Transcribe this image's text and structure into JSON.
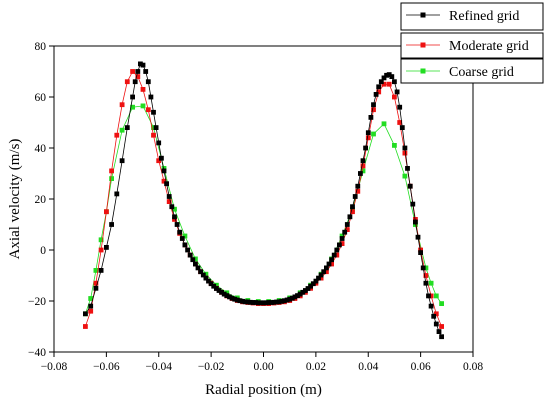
{
  "chart_data": {
    "type": "line",
    "title": "",
    "xlabel": "Radial position (m)",
    "ylabel": "Axial velocity (m/s)",
    "xlim": [
      -0.08,
      0.08
    ],
    "ylim": [
      -40,
      80
    ],
    "xticks": [
      -0.08,
      -0.06,
      -0.04,
      -0.02,
      0.0,
      0.02,
      0.04,
      0.06,
      0.08
    ],
    "xtick_labels": [
      "−0.08",
      "−0.06",
      "−0.04",
      "−0.02",
      "0.00",
      "0.02",
      "0.04",
      "0.06",
      "0.08"
    ],
    "yticks": [
      -40,
      -20,
      0,
      20,
      40,
      60,
      80
    ],
    "ytick_labels": [
      "−40",
      "−20",
      "0",
      "20",
      "40",
      "60",
      "80"
    ],
    "grid": false,
    "legend_position": "top-right",
    "series": [
      {
        "name": "Refined grid",
        "color": "#000000",
        "marker": "square",
        "points": [
          [
            -0.068,
            -25
          ],
          [
            -0.066,
            -22
          ],
          [
            -0.064,
            -15
          ],
          [
            -0.062,
            -8
          ],
          [
            -0.06,
            1
          ],
          [
            -0.058,
            10
          ],
          [
            -0.056,
            22
          ],
          [
            -0.054,
            35
          ],
          [
            -0.052,
            48
          ],
          [
            -0.05,
            60
          ],
          [
            -0.049,
            66
          ],
          [
            -0.048,
            70
          ],
          [
            -0.047,
            73
          ],
          [
            -0.046,
            72.5
          ],
          [
            -0.045,
            70
          ],
          [
            -0.044,
            66
          ],
          [
            -0.043,
            60
          ],
          [
            -0.042,
            54
          ],
          [
            -0.041,
            48
          ],
          [
            -0.04,
            42
          ],
          [
            -0.039,
            36
          ],
          [
            -0.038,
            31
          ],
          [
            -0.037,
            26
          ],
          [
            -0.036,
            21
          ],
          [
            -0.035,
            17
          ],
          [
            -0.034,
            13
          ],
          [
            -0.033,
            10
          ],
          [
            -0.032,
            7
          ],
          [
            -0.031,
            4.5
          ],
          [
            -0.03,
            2
          ],
          [
            -0.029,
            0
          ],
          [
            -0.028,
            -2
          ],
          [
            -0.027,
            -3.8
          ],
          [
            -0.026,
            -5.5
          ],
          [
            -0.025,
            -7
          ],
          [
            -0.024,
            -8.5
          ],
          [
            -0.023,
            -9.8
          ],
          [
            -0.022,
            -11
          ],
          [
            -0.021,
            -12.2
          ],
          [
            -0.02,
            -13.2
          ],
          [
            -0.019,
            -14.2
          ],
          [
            -0.018,
            -15.1
          ],
          [
            -0.017,
            -15.9
          ],
          [
            -0.016,
            -16.6
          ],
          [
            -0.015,
            -17.3
          ],
          [
            -0.014,
            -17.9
          ],
          [
            -0.013,
            -18.4
          ],
          [
            -0.012,
            -18.9
          ],
          [
            -0.011,
            -19.3
          ],
          [
            -0.01,
            -19.6
          ],
          [
            -0.009,
            -19.9
          ],
          [
            -0.008,
            -20.1
          ],
          [
            -0.007,
            -20.3
          ],
          [
            -0.006,
            -20.4
          ],
          [
            -0.005,
            -20.5
          ],
          [
            -0.004,
            -20.6
          ],
          [
            -0.003,
            -20.6
          ],
          [
            -0.002,
            -20.7
          ],
          [
            -0.001,
            -20.7
          ],
          [
            0.0,
            -20.7
          ],
          [
            0.001,
            -20.7
          ],
          [
            0.002,
            -20.6
          ],
          [
            0.003,
            -20.6
          ],
          [
            0.004,
            -20.5
          ],
          [
            0.005,
            -20.4
          ],
          [
            0.006,
            -20.3
          ],
          [
            0.007,
            -20.1
          ],
          [
            0.008,
            -19.9
          ],
          [
            0.009,
            -19.6
          ],
          [
            0.01,
            -19.3
          ],
          [
            0.011,
            -18.9
          ],
          [
            0.012,
            -18.4
          ],
          [
            0.013,
            -17.9
          ],
          [
            0.014,
            -17.3
          ],
          [
            0.015,
            -16.6
          ],
          [
            0.016,
            -15.9
          ],
          [
            0.017,
            -15.1
          ],
          [
            0.018,
            -14.2
          ],
          [
            0.019,
            -13.2
          ],
          [
            0.02,
            -12.2
          ],
          [
            0.021,
            -11
          ],
          [
            0.022,
            -9.8
          ],
          [
            0.023,
            -8.5
          ],
          [
            0.024,
            -7
          ],
          [
            0.025,
            -5.5
          ],
          [
            0.026,
            -3.8
          ],
          [
            0.027,
            -2
          ],
          [
            0.028,
            0
          ],
          [
            0.029,
            2
          ],
          [
            0.03,
            4.5
          ],
          [
            0.031,
            7
          ],
          [
            0.032,
            10
          ],
          [
            0.033,
            13
          ],
          [
            0.034,
            17
          ],
          [
            0.035,
            21
          ],
          [
            0.036,
            25
          ],
          [
            0.037,
            30
          ],
          [
            0.038,
            35
          ],
          [
            0.039,
            40
          ],
          [
            0.04,
            46
          ],
          [
            0.041,
            52
          ],
          [
            0.042,
            57
          ],
          [
            0.043,
            61
          ],
          [
            0.044,
            64
          ],
          [
            0.045,
            66
          ],
          [
            0.046,
            67.5
          ],
          [
            0.047,
            68.5
          ],
          [
            0.048,
            68.8
          ],
          [
            0.049,
            68
          ],
          [
            0.05,
            66
          ],
          [
            0.051,
            62
          ],
          [
            0.052,
            56
          ],
          [
            0.053,
            48
          ],
          [
            0.054,
            40
          ],
          [
            0.055,
            32
          ],
          [
            0.056,
            25
          ],
          [
            0.057,
            18
          ],
          [
            0.058,
            11
          ],
          [
            0.059,
            5
          ],
          [
            0.06,
            -1
          ],
          [
            0.061,
            -7
          ],
          [
            0.062,
            -13
          ],
          [
            0.063,
            -18
          ],
          [
            0.064,
            -22
          ],
          [
            0.065,
            -26
          ],
          [
            0.066,
            -29
          ],
          [
            0.067,
            -32
          ],
          [
            0.068,
            -34
          ]
        ]
      },
      {
        "name": "Moderate grid",
        "color": "#ee1111",
        "marker": "square",
        "points": [
          [
            -0.068,
            -30
          ],
          [
            -0.066,
            -24
          ],
          [
            -0.064,
            -13
          ],
          [
            -0.062,
            0
          ],
          [
            -0.06,
            15
          ],
          [
            -0.058,
            31
          ],
          [
            -0.056,
            45
          ],
          [
            -0.054,
            57
          ],
          [
            -0.052,
            66
          ],
          [
            -0.05,
            70
          ],
          [
            -0.048,
            68
          ],
          [
            -0.046,
            63
          ],
          [
            -0.044,
            55
          ],
          [
            -0.042,
            45
          ],
          [
            -0.04,
            35
          ],
          [
            -0.038,
            27
          ],
          [
            -0.036,
            19
          ],
          [
            -0.034,
            12
          ],
          [
            -0.032,
            6.5
          ],
          [
            -0.03,
            2
          ],
          [
            -0.028,
            -2
          ],
          [
            -0.026,
            -5.5
          ],
          [
            -0.024,
            -8.5
          ],
          [
            -0.022,
            -11
          ],
          [
            -0.02,
            -13
          ],
          [
            -0.018,
            -15
          ],
          [
            -0.016,
            -16.6
          ],
          [
            -0.014,
            -18
          ],
          [
            -0.012,
            -19
          ],
          [
            -0.01,
            -19.8
          ],
          [
            -0.008,
            -20.3
          ],
          [
            -0.006,
            -20.6
          ],
          [
            -0.004,
            -20.8
          ],
          [
            -0.002,
            -21
          ],
          [
            0.0,
            -21
          ],
          [
            0.002,
            -21
          ],
          [
            0.004,
            -20.8
          ],
          [
            0.006,
            -20.6
          ],
          [
            0.008,
            -20.3
          ],
          [
            0.01,
            -19.8
          ],
          [
            0.012,
            -19
          ],
          [
            0.014,
            -18
          ],
          [
            0.016,
            -16.6
          ],
          [
            0.018,
            -15
          ],
          [
            0.02,
            -13
          ],
          [
            0.022,
            -11
          ],
          [
            0.024,
            -8.5
          ],
          [
            0.026,
            -5.5
          ],
          [
            0.028,
            -2
          ],
          [
            0.03,
            2.5
          ],
          [
            0.032,
            8
          ],
          [
            0.034,
            15
          ],
          [
            0.036,
            23
          ],
          [
            0.038,
            33
          ],
          [
            0.04,
            44
          ],
          [
            0.042,
            55
          ],
          [
            0.044,
            62
          ],
          [
            0.046,
            65
          ],
          [
            0.048,
            65
          ],
          [
            0.05,
            60
          ],
          [
            0.052,
            50
          ],
          [
            0.054,
            38
          ],
          [
            0.056,
            25
          ],
          [
            0.058,
            12
          ],
          [
            0.06,
            0
          ],
          [
            0.062,
            -10
          ],
          [
            0.064,
            -18
          ],
          [
            0.066,
            -25
          ],
          [
            0.068,
            -30
          ]
        ]
      },
      {
        "name": "Coarse grid",
        "color": "#22dd22",
        "marker": "square",
        "points": [
          [
            -0.068,
            -25
          ],
          [
            -0.066,
            -19
          ],
          [
            -0.064,
            -8
          ],
          [
            -0.062,
            4
          ],
          [
            -0.06,
            15
          ],
          [
            -0.058,
            28
          ],
          [
            -0.054,
            47
          ],
          [
            -0.05,
            56
          ],
          [
            -0.046,
            56.5
          ],
          [
            -0.042,
            48
          ],
          [
            -0.038,
            32
          ],
          [
            -0.034,
            16
          ],
          [
            -0.03,
            5.5
          ],
          [
            -0.026,
            -3.5
          ],
          [
            -0.022,
            -9.5
          ],
          [
            -0.018,
            -13.8
          ],
          [
            -0.014,
            -16.8
          ],
          [
            -0.01,
            -18.8
          ],
          [
            -0.006,
            -19.8
          ],
          [
            -0.002,
            -20.2
          ],
          [
            0.002,
            -20.2
          ],
          [
            0.006,
            -19.8
          ],
          [
            0.01,
            -18.8
          ],
          [
            0.014,
            -16.8
          ],
          [
            0.018,
            -13.8
          ],
          [
            0.022,
            -9.5
          ],
          [
            0.026,
            -3.5
          ],
          [
            0.03,
            5.5
          ],
          [
            0.034,
            16
          ],
          [
            0.038,
            31
          ],
          [
            0.042,
            45.5
          ],
          [
            0.046,
            49.5
          ],
          [
            0.05,
            41
          ],
          [
            0.054,
            29
          ],
          [
            0.058,
            10
          ],
          [
            0.062,
            -7
          ],
          [
            0.064,
            -13
          ],
          [
            0.066,
            -18
          ],
          [
            0.068,
            -21
          ]
        ]
      }
    ]
  }
}
